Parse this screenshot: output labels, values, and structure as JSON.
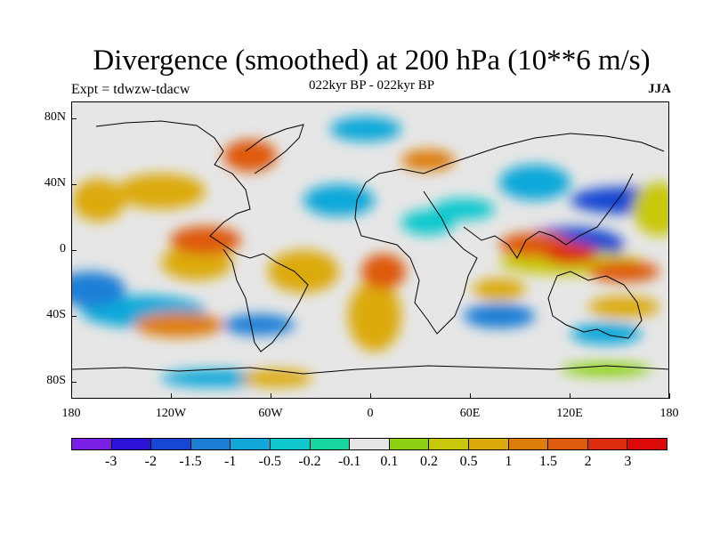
{
  "title": "Divergence (smoothed) at 200 hPa (10**6 m/s)",
  "subtitle_left": "Expt = tdwzw-tdacw",
  "subtitle_center": "022kyr BP - 022kyr BP",
  "subtitle_right": "JJA",
  "map": {
    "projection": "cylindrical-equidistant",
    "lon_range": [
      -180,
      180
    ],
    "lat_range": [
      -90,
      90
    ],
    "background_color": "#e6e6e6",
    "lat_labels": [
      "80N",
      "40N",
      "0",
      "40S",
      "80S"
    ],
    "lat_values": [
      80,
      40,
      0,
      -40,
      -80
    ],
    "lon_labels": [
      "180",
      "120W",
      "60W",
      "0",
      "60E",
      "120E",
      "180"
    ],
    "lon_values": [
      -180,
      -120,
      -60,
      0,
      60,
      120,
      180
    ]
  },
  "colorbar": {
    "colors": [
      "#7b1ee6",
      "#2d12d8",
      "#1646d2",
      "#1b7fd6",
      "#11a8d9",
      "#10c9cd",
      "#17d6a0",
      "#e6e6e6",
      "#8cd213",
      "#c8c80a",
      "#dcaa0a",
      "#de7e0a",
      "#de5a0c",
      "#dc2e0e",
      "#dc0a0a"
    ],
    "labels": [
      "-3",
      "-2",
      "-1.5",
      "-1",
      "-0.5",
      "-0.2",
      "-0.1",
      "0.1",
      "0.2",
      "0.5",
      "1",
      "1.5",
      "2",
      "3"
    ]
  }
}
